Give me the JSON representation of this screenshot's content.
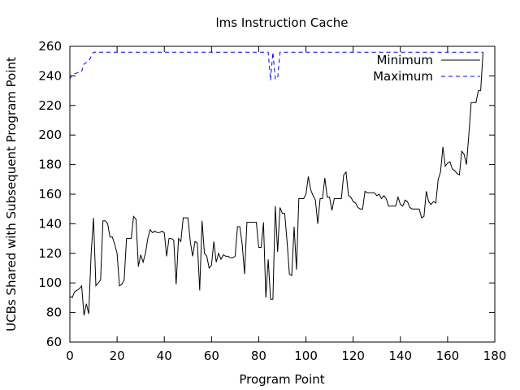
{
  "chart_data": {
    "type": "line",
    "title": "lms Instruction Cache",
    "xlabel": "Program Point",
    "ylabel": "UCBs Shared with Subsequent Program Point",
    "xlim": [
      0,
      180
    ],
    "ylim": [
      60,
      260
    ],
    "xticks": [
      0,
      20,
      40,
      60,
      80,
      100,
      120,
      140,
      160,
      180
    ],
    "yticks": [
      60,
      80,
      100,
      120,
      140,
      160,
      180,
      200,
      220,
      240,
      260
    ],
    "legend_position": "top-right",
    "series": [
      {
        "name": "Minimum",
        "style": "solid",
        "color": "#000000",
        "points": [
          [
            0,
            91
          ],
          [
            1,
            90
          ],
          [
            2,
            94
          ],
          [
            4,
            96
          ],
          [
            5,
            98
          ],
          [
            6,
            78
          ],
          [
            7,
            86
          ],
          [
            8,
            79
          ],
          [
            9,
            120
          ],
          [
            10,
            144
          ],
          [
            11,
            98
          ],
          [
            12,
            100
          ],
          [
            13,
            102
          ],
          [
            14,
            142
          ],
          [
            15,
            142
          ],
          [
            16,
            140
          ],
          [
            17,
            131
          ],
          [
            18,
            131
          ],
          [
            19,
            126
          ],
          [
            20,
            120
          ],
          [
            21,
            98
          ],
          [
            22,
            99
          ],
          [
            23,
            102
          ],
          [
            24,
            130
          ],
          [
            25,
            130
          ],
          [
            26,
            130
          ],
          [
            27,
            145
          ],
          [
            28,
            143
          ],
          [
            29,
            111
          ],
          [
            30,
            119
          ],
          [
            31,
            114
          ],
          [
            32,
            120
          ],
          [
            33,
            130
          ],
          [
            34,
            136
          ],
          [
            35,
            134
          ],
          [
            36,
            135
          ],
          [
            37,
            134
          ],
          [
            38,
            134
          ],
          [
            39,
            135
          ],
          [
            40,
            134
          ],
          [
            41,
            118
          ],
          [
            42,
            130
          ],
          [
            43,
            130
          ],
          [
            44,
            129
          ],
          [
            45,
            99
          ],
          [
            46,
            130
          ],
          [
            47,
            128
          ],
          [
            48,
            144
          ],
          [
            49,
            144
          ],
          [
            50,
            144
          ],
          [
            51,
            128
          ],
          [
            52,
            118
          ],
          [
            53,
            128
          ],
          [
            54,
            127
          ],
          [
            55,
            95
          ],
          [
            56,
            142
          ],
          [
            57,
            120
          ],
          [
            58,
            118
          ],
          [
            59,
            110
          ],
          [
            60,
            112
          ],
          [
            61,
            128
          ],
          [
            62,
            114
          ],
          [
            63,
            120
          ],
          [
            64,
            116
          ],
          [
            65,
            119
          ],
          [
            66,
            118
          ],
          [
            67,
            118
          ],
          [
            68,
            117
          ],
          [
            69,
            117
          ],
          [
            70,
            118
          ],
          [
            71,
            138
          ],
          [
            72,
            138
          ],
          [
            73,
            126
          ],
          [
            74,
            106
          ],
          [
            75,
            141
          ],
          [
            76,
            141
          ],
          [
            77,
            141
          ],
          [
            78,
            141
          ],
          [
            79,
            141
          ],
          [
            80,
            124
          ],
          [
            81,
            124
          ],
          [
            82,
            141
          ],
          [
            83,
            90
          ],
          [
            84,
            116
          ],
          [
            85,
            89
          ],
          [
            86,
            89
          ],
          [
            87,
            152
          ],
          [
            88,
            121
          ],
          [
            89,
            151
          ],
          [
            90,
            147
          ],
          [
            91,
            147
          ],
          [
            92,
            128
          ],
          [
            93,
            106
          ],
          [
            94,
            105
          ],
          [
            95,
            138
          ],
          [
            96,
            109
          ],
          [
            97,
            157
          ],
          [
            98,
            157
          ],
          [
            99,
            157
          ],
          [
            100,
            160
          ],
          [
            101,
            172
          ],
          [
            102,
            163
          ],
          [
            103,
            159
          ],
          [
            104,
            156
          ],
          [
            105,
            140
          ],
          [
            106,
            157
          ],
          [
            107,
            157
          ],
          [
            108,
            171
          ],
          [
            109,
            158
          ],
          [
            110,
            158
          ],
          [
            111,
            149
          ],
          [
            112,
            157
          ],
          [
            113,
            157
          ],
          [
            114,
            157
          ],
          [
            115,
            157
          ],
          [
            116,
            173
          ],
          [
            117,
            175
          ],
          [
            118,
            159
          ],
          [
            119,
            158
          ],
          [
            120,
            155
          ],
          [
            121,
            154
          ],
          [
            122,
            151
          ],
          [
            123,
            150
          ],
          [
            124,
            150
          ],
          [
            125,
            162
          ],
          [
            126,
            161
          ],
          [
            127,
            161
          ],
          [
            128,
            161
          ],
          [
            129,
            161
          ],
          [
            130,
            159
          ],
          [
            131,
            160
          ],
          [
            132,
            157
          ],
          [
            133,
            159
          ],
          [
            134,
            157
          ],
          [
            135,
            152
          ],
          [
            136,
            152
          ],
          [
            137,
            152
          ],
          [
            138,
            152
          ],
          [
            139,
            158
          ],
          [
            140,
            153
          ],
          [
            141,
            152
          ],
          [
            142,
            156
          ],
          [
            143,
            155
          ],
          [
            144,
            151
          ],
          [
            145,
            150
          ],
          [
            146,
            150
          ],
          [
            147,
            150
          ],
          [
            148,
            150
          ],
          [
            149,
            144
          ],
          [
            150,
            145
          ],
          [
            151,
            162
          ],
          [
            152,
            155
          ],
          [
            153,
            153
          ],
          [
            154,
            155
          ],
          [
            155,
            154
          ],
          [
            156,
            170
          ],
          [
            157,
            175
          ],
          [
            158,
            192
          ],
          [
            159,
            179
          ],
          [
            160,
            181
          ],
          [
            161,
            182
          ],
          [
            162,
            177
          ],
          [
            163,
            176
          ],
          [
            164,
            174
          ],
          [
            165,
            173
          ],
          [
            166,
            189
          ],
          [
            167,
            187
          ],
          [
            168,
            180
          ],
          [
            169,
            200
          ],
          [
            170,
            222
          ],
          [
            171,
            222
          ],
          [
            172,
            222
          ],
          [
            173,
            230
          ],
          [
            174,
            230
          ],
          [
            175,
            256
          ]
        ]
      },
      {
        "name": "Maximum",
        "style": "dashed",
        "color": "#0000ff",
        "points": [
          [
            0,
            238
          ],
          [
            1,
            241
          ],
          [
            3,
            242
          ],
          [
            5,
            243
          ],
          [
            6,
            248
          ],
          [
            8,
            250
          ],
          [
            10,
            256
          ],
          [
            84,
            256
          ],
          [
            85,
            237
          ],
          [
            86,
            256
          ],
          [
            87,
            238
          ],
          [
            88,
            238
          ],
          [
            89,
            256
          ],
          [
            175,
            256
          ]
        ]
      }
    ]
  }
}
